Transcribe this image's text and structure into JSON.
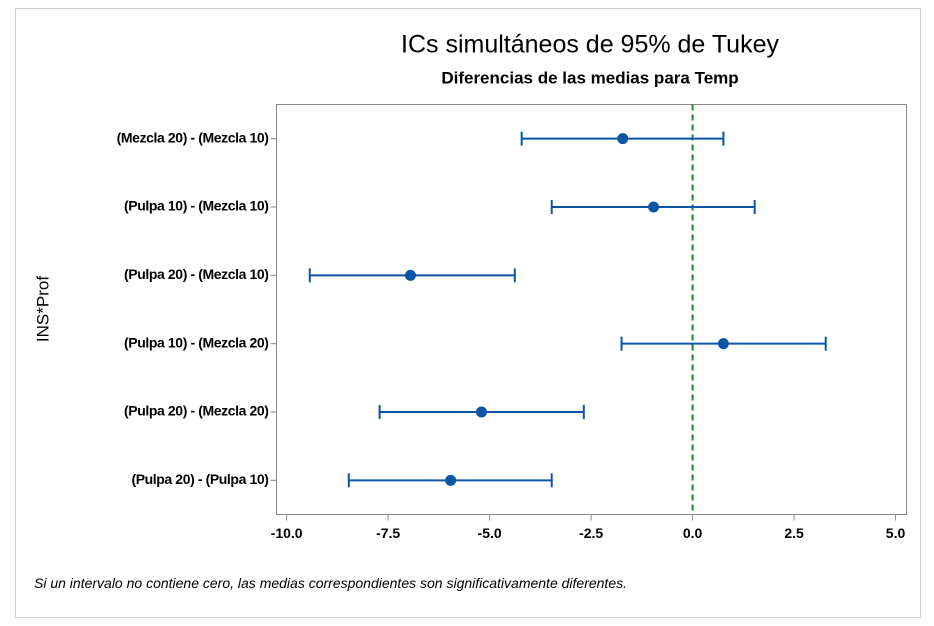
{
  "chart_data": {
    "type": "interval",
    "title": "ICs simultáneos de 95% de Tukey",
    "subtitle": "Diferencias de las medias para Temp",
    "ylabel": "INS*Prof",
    "note": "Si un intervalo no contiene cero, las medias correspondientes son significativamente diferentes.",
    "categories": [
      "(Mezcla 20) - (Mezcla 10)",
      "(Pulpa 10) - (Mezcla 10)",
      "(Pulpa 20) - (Mezcla 10)",
      "(Pulpa 10) - (Mezcla 20)",
      "(Pulpa 20) - (Mezcla 20)",
      "(Pulpa 20) - (Pulpa 10)"
    ],
    "values": [
      -1.72,
      -0.96,
      -6.95,
      0.76,
      -5.2,
      -5.96
    ],
    "lower": [
      -4.21,
      -3.47,
      -9.43,
      -1.75,
      -7.71,
      -8.47
    ],
    "upper": [
      0.76,
      1.53,
      -4.38,
      3.28,
      -2.68,
      -3.47
    ],
    "color": "#0a55a6",
    "reference_line": 0,
    "reference_color": "#1a8a2a",
    "xlim": [
      -10.25,
      5.27
    ],
    "xticks": [
      {
        "value": -10,
        "label": "-10.0"
      },
      {
        "value": -7.5,
        "label": "-7.5"
      },
      {
        "value": -5,
        "label": "-5.0"
      },
      {
        "value": -2.5,
        "label": "-2.5"
      },
      {
        "value": 0,
        "label": "0.0"
      },
      {
        "value": 2.5,
        "label": "2.5"
      },
      {
        "value": 5,
        "label": "5.0"
      }
    ]
  }
}
